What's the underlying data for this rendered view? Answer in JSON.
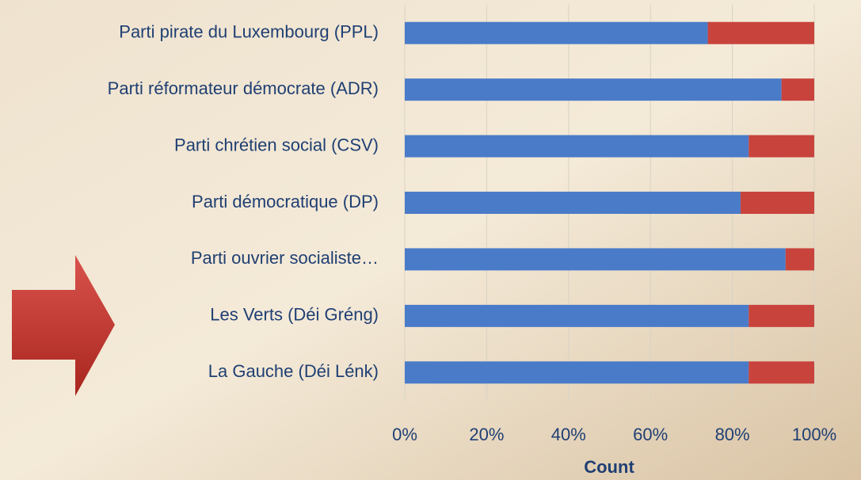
{
  "chart_data": {
    "type": "stacked_barh",
    "categories": [
      "Parti pirate du Luxembourg (PPL)",
      "Parti réformateur démocrate (ADR)",
      "Parti chrétien social (CSV)",
      "Parti démocratique (DP)",
      "Parti ouvrier socialiste…",
      "Les Verts (Déi Gréng)",
      "La Gauche (Déi Lénk)"
    ],
    "series": [
      {
        "color": "#4a7bc8",
        "values": [
          74,
          92,
          84,
          82,
          93,
          84,
          84
        ]
      },
      {
        "color": "#c8433c",
        "values": [
          26,
          8,
          16,
          18,
          7,
          16,
          16
        ]
      }
    ],
    "xlabel": "Count",
    "xlim": [
      0,
      100
    ],
    "xticks": [
      {
        "value": 0,
        "label": "0%"
      },
      {
        "value": 20,
        "label": "20%"
      },
      {
        "value": 40,
        "label": "40%"
      },
      {
        "value": 60,
        "label": "60%"
      },
      {
        "value": 80,
        "label": "80%"
      },
      {
        "value": 100,
        "label": "100%"
      }
    ],
    "grid": true
  }
}
